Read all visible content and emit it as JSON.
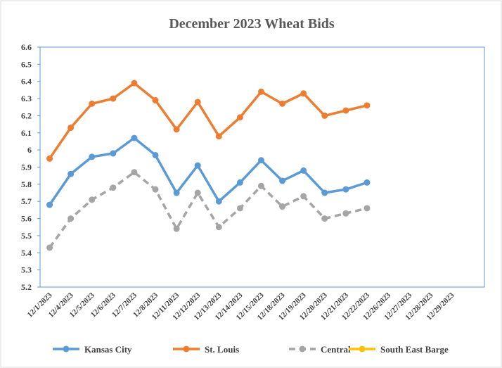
{
  "chart_data": {
    "type": "line",
    "title": "December 2023 Wheat Bids",
    "categories": [
      "12/1/2023",
      "12/4/2023",
      "12/5/2023",
      "12/6/2023",
      "12/7/2023",
      "12/8/2023",
      "12/11/2023",
      "12/12/2023",
      "12/13/2023",
      "12/14/2023",
      "12/15/2023",
      "12/18/2023",
      "12/19/2023",
      "12/20/2023",
      "12/21/2023",
      "12/22/2023",
      "12/26/2023",
      "12/27/2023",
      "12/28/2023",
      "12/29/2023",
      null
    ],
    "series": [
      {
        "name": "Kansas City",
        "color": "#5b9bd5",
        "dash": false,
        "values": [
          5.68,
          5.86,
          5.96,
          5.98,
          6.07,
          5.97,
          5.75,
          5.91,
          5.7,
          5.81,
          5.94,
          5.82,
          5.88,
          5.75,
          5.77,
          5.81,
          null,
          null,
          null,
          null,
          null
        ]
      },
      {
        "name": "St. Louis",
        "color": "#ed7d31",
        "dash": false,
        "values": [
          5.95,
          6.13,
          6.27,
          6.3,
          6.39,
          6.29,
          6.12,
          6.28,
          6.08,
          6.19,
          6.34,
          6.27,
          6.33,
          6.2,
          6.23,
          6.26,
          null,
          null,
          null,
          null,
          null
        ]
      },
      {
        "name": "Central",
        "color": "#a5a5a5",
        "dash": true,
        "values": [
          5.43,
          5.6,
          5.71,
          5.78,
          5.87,
          5.77,
          5.54,
          5.75,
          5.55,
          5.66,
          5.79,
          5.67,
          5.73,
          5.6,
          5.63,
          5.66,
          null,
          null,
          null,
          null,
          null
        ]
      },
      {
        "name": "South East Barge",
        "color": "#ffc000",
        "dash": false,
        "values": [
          null,
          null,
          null,
          null,
          null,
          null,
          null,
          null,
          null,
          null,
          null,
          null,
          null,
          null,
          null,
          null,
          null,
          null,
          null,
          null,
          null
        ]
      }
    ],
    "ylim": [
      5.2,
      6.6
    ],
    "yticks": [
      5.2,
      5.3,
      5.4,
      5.5,
      5.6,
      5.7,
      5.8,
      5.9,
      6,
      6.1,
      6.2,
      6.3,
      6.4,
      6.5,
      6.6
    ],
    "grid": false,
    "legend": "bottom"
  }
}
